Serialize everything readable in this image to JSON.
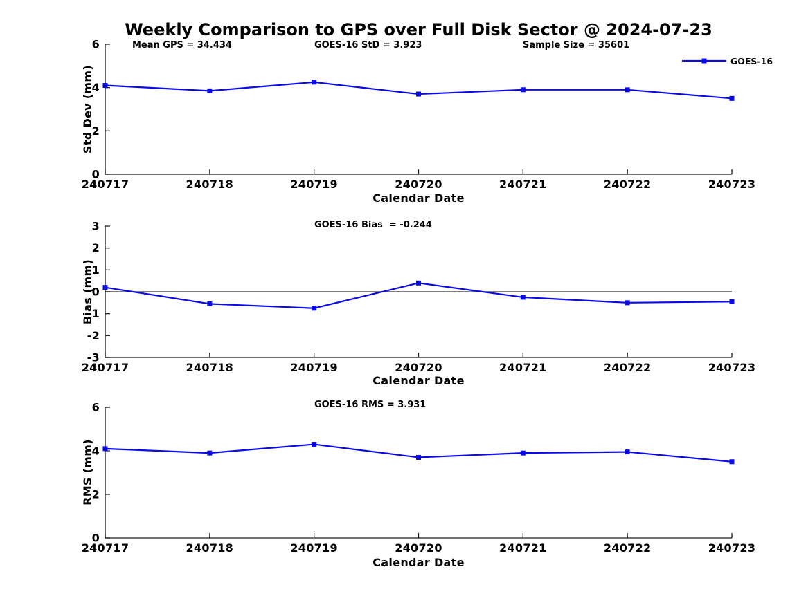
{
  "figure": {
    "title": "Weekly Comparison to GPS over Full Disk Sector @ 2024-07-23"
  },
  "colors": {
    "series": "#0a0ae8",
    "axis": "#1a1a1a",
    "zero_line": "#555555",
    "text": "#000000",
    "background": "#ffffff"
  },
  "legend": {
    "label": "GOES-16",
    "position": "top-right-outside"
  },
  "chart_data": [
    {
      "type": "line",
      "title": "",
      "categories": [
        "240717",
        "240718",
        "240719",
        "240720",
        "240721",
        "240722",
        "240723"
      ],
      "series": [
        {
          "name": "GOES-16",
          "values": [
            4.1,
            3.85,
            4.25,
            3.7,
            3.9,
            3.9,
            3.5
          ]
        }
      ],
      "annotations": [
        "Mean GPS = 34.434",
        "GOES-16 StD = 3.923",
        "Sample Size = 35601"
      ],
      "xlabel": "Calendar Date",
      "ylabel": "Std Dev (mm)",
      "ylim": [
        0,
        6
      ],
      "yticks": [
        0,
        2,
        4,
        6
      ],
      "grid": false,
      "zero_line": false,
      "marker": "square"
    },
    {
      "type": "line",
      "title": "",
      "categories": [
        "240717",
        "240718",
        "240719",
        "240720",
        "240721",
        "240722",
        "240723"
      ],
      "series": [
        {
          "name": "GOES-16",
          "values": [
            0.2,
            -0.55,
            -0.75,
            0.4,
            -0.25,
            -0.5,
            -0.45
          ]
        }
      ],
      "annotations": [
        "GOES-16 Bias  = -0.244"
      ],
      "xlabel": "Calendar Date",
      "ylabel": "Bias (mm)",
      "ylim": [
        -3,
        3
      ],
      "yticks": [
        -3,
        -2,
        -1,
        0,
        1,
        2,
        3
      ],
      "grid": false,
      "zero_line": true,
      "marker": "square"
    },
    {
      "type": "line",
      "title": "",
      "categories": [
        "240717",
        "240718",
        "240719",
        "240720",
        "240721",
        "240722",
        "240723"
      ],
      "series": [
        {
          "name": "GOES-16",
          "values": [
            4.1,
            3.9,
            4.3,
            3.7,
            3.9,
            3.95,
            3.5
          ]
        }
      ],
      "annotations": [
        "GOES-16 RMS = 3.931"
      ],
      "xlabel": "Calendar Date",
      "ylabel": "RMS (mm)",
      "ylim": [
        0,
        6
      ],
      "yticks": [
        0,
        2,
        4,
        6
      ],
      "grid": false,
      "zero_line": false,
      "marker": "square"
    }
  ]
}
